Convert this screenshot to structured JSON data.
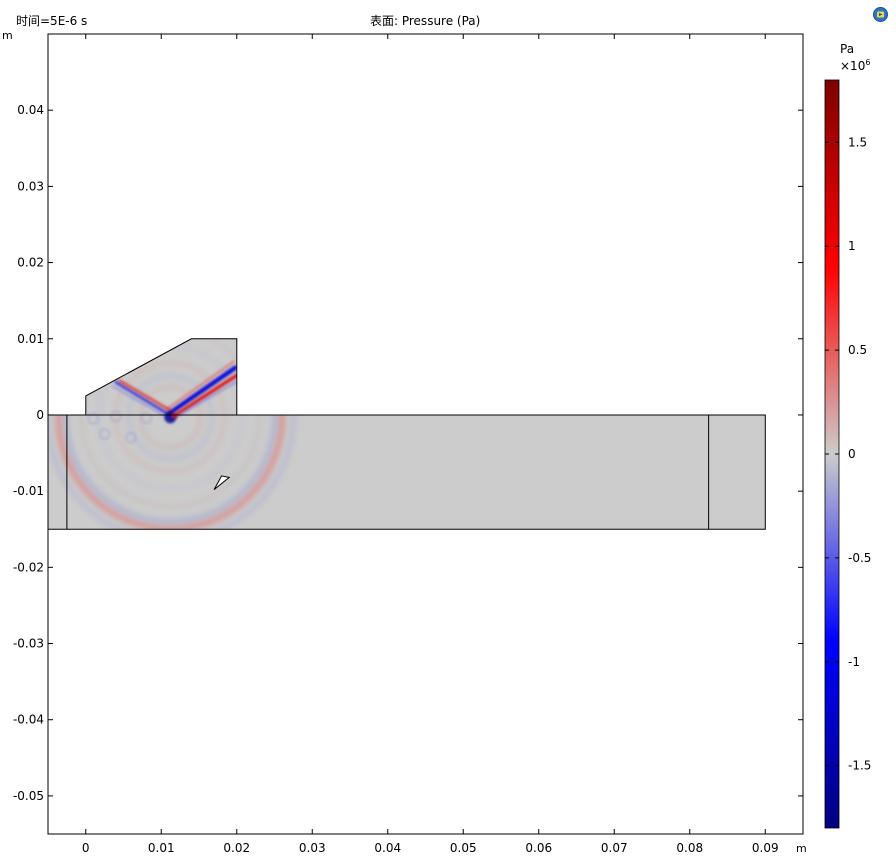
{
  "header": {
    "time_label": "时间=5E-6 s",
    "title": "表面: Pressure (Pa)",
    "logo_icon": "comsol-logo-icon"
  },
  "chart_data": {
    "type": "heatmap",
    "title": "表面: Pressure (Pa)",
    "xlabel": "m",
    "ylabel": "m",
    "xlim": [
      -0.005,
      0.095
    ],
    "ylim": [
      -0.055,
      0.05
    ],
    "xticks": [
      0,
      0.01,
      0.02,
      0.03,
      0.04,
      0.05,
      0.06,
      0.07,
      0.08,
      0.09
    ],
    "xtick_labels": [
      "0",
      "0.01",
      "0.02",
      "0.03",
      "0.04",
      "0.05",
      "0.06",
      "0.07",
      "0.08",
      "0.09"
    ],
    "yticks": [
      0.04,
      0.03,
      0.02,
      0.01,
      0,
      -0.01,
      -0.02,
      -0.03,
      -0.04,
      -0.05
    ],
    "ytick_labels": [
      "0.04",
      "0.03",
      "0.02",
      "0.01",
      "0",
      "-0.01",
      "-0.02",
      "-0.03",
      "-0.04",
      "-0.05"
    ],
    "colorbar": {
      "unit": "Pa",
      "multiplier": "×10",
      "exponent": "6",
      "range": [
        -1.8,
        1.8
      ],
      "ticks": [
        1.5,
        1,
        0.5,
        0,
        -0.5,
        -1,
        -1.5
      ],
      "tick_labels": [
        "1.5",
        "1",
        "0.5",
        "0",
        "-0.5",
        "-1",
        "-1.5"
      ],
      "colors": [
        "#00007f",
        "#0000ff",
        "#cccccc",
        "#ff0000",
        "#7f0000"
      ]
    },
    "geometry": {
      "specimen": [
        [
          -0.005,
          0
        ],
        [
          0.09,
          0
        ],
        [
          0.09,
          -0.015
        ],
        [
          -0.005,
          -0.015
        ]
      ],
      "wedge": [
        [
          0,
          0
        ],
        [
          0,
          0.0025
        ],
        [
          0.014,
          0.01
        ],
        [
          0.02,
          0.01
        ],
        [
          0.02,
          0
        ]
      ],
      "domain_lines": [
        [
          [
            -0.0025,
            0
          ],
          [
            -0.0025,
            -0.015
          ]
        ],
        [
          [
            0.0825,
            0
          ],
          [
            0.0825,
            -0.015
          ]
        ]
      ],
      "defect": [
        [
          0.017,
          -0.0098
        ],
        [
          0.019,
          -0.0082
        ],
        [
          0.018,
          -0.008
        ]
      ]
    },
    "wave_source": [
      0.0112,
      -0.0003
    ],
    "background_color": "#cccccc"
  }
}
